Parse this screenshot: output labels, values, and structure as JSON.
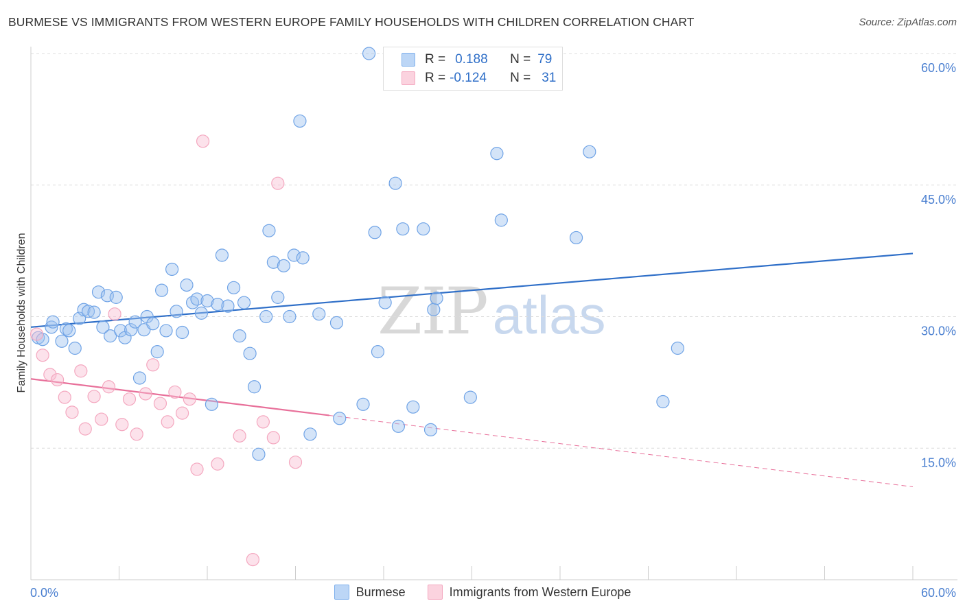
{
  "title": "BURMESE VS IMMIGRANTS FROM WESTERN EUROPE FAMILY HOUSEHOLDS WITH CHILDREN CORRELATION CHART",
  "source": "Source: ZipAtlas.com",
  "watermark": {
    "zip": "ZIP",
    "atlas": "atlas"
  },
  "legend": {
    "rows": [
      {
        "r_label": "R =",
        "r_value": "0.188",
        "n_label": "N =",
        "n_value": "79",
        "color": "#7fb0ec"
      },
      {
        "r_label": "R =",
        "r_value": "-0.124",
        "n_label": "N =",
        "n_value": "31",
        "color": "#f4a7bf"
      }
    ]
  },
  "bottom_legend": [
    {
      "label": "Burmese",
      "color": "#7fb0ec"
    },
    {
      "label": "Immigrants from Western Europe",
      "color": "#f4a7bf"
    }
  ],
  "chart_data": {
    "type": "scatter",
    "title": "BURMESE VS IMMIGRANTS FROM WESTERN EUROPE FAMILY HOUSEHOLDS WITH CHILDREN CORRELATION CHART",
    "xlabel": "",
    "ylabel": "Family Households with Children",
    "xlim": [
      0,
      60
    ],
    "ylim": [
      0,
      60
    ],
    "x_tick_labels": [
      "0.0%",
      "60.0%"
    ],
    "y_tick_labels": [
      "15.0%",
      "30.0%",
      "45.0%",
      "60.0%"
    ],
    "y_tick_values": [
      15,
      30,
      45,
      60
    ],
    "grid": true,
    "legend_position": "top-center",
    "series": [
      {
        "name": "Burmese",
        "color": "#6fa3e6",
        "line_color": "#2f6fc8",
        "trend": {
          "x0": 0,
          "y0": 28.8,
          "x1": 60,
          "y1": 37.2,
          "dashed_from": null
        },
        "points": [
          [
            0.5,
            27.6
          ],
          [
            0.8,
            27.4
          ],
          [
            1.4,
            28.8
          ],
          [
            1.5,
            29.4
          ],
          [
            2.1,
            27.2
          ],
          [
            2.4,
            28.6
          ],
          [
            2.6,
            28.4
          ],
          [
            3.0,
            26.4
          ],
          [
            3.3,
            29.8
          ],
          [
            3.6,
            30.8
          ],
          [
            3.9,
            30.6
          ],
          [
            4.3,
            30.5
          ],
          [
            4.6,
            32.8
          ],
          [
            4.9,
            28.8
          ],
          [
            5.2,
            32.4
          ],
          [
            5.4,
            27.8
          ],
          [
            5.8,
            32.2
          ],
          [
            6.1,
            28.4
          ],
          [
            6.4,
            27.6
          ],
          [
            6.8,
            28.5
          ],
          [
            7.1,
            29.4
          ],
          [
            7.4,
            23.0
          ],
          [
            7.7,
            28.5
          ],
          [
            7.9,
            30.0
          ],
          [
            8.3,
            29.2
          ],
          [
            8.6,
            26.0
          ],
          [
            8.9,
            33.0
          ],
          [
            9.2,
            28.4
          ],
          [
            9.6,
            35.4
          ],
          [
            9.9,
            30.6
          ],
          [
            10.3,
            28.2
          ],
          [
            10.6,
            33.6
          ],
          [
            11.0,
            31.6
          ],
          [
            11.3,
            32.0
          ],
          [
            11.6,
            30.4
          ],
          [
            12.0,
            31.8
          ],
          [
            12.3,
            20.0
          ],
          [
            12.7,
            31.4
          ],
          [
            13.0,
            37.0
          ],
          [
            13.4,
            31.2
          ],
          [
            13.8,
            33.3
          ],
          [
            14.2,
            27.8
          ],
          [
            14.5,
            31.6
          ],
          [
            14.9,
            25.8
          ],
          [
            15.2,
            22.0
          ],
          [
            15.5,
            14.3
          ],
          [
            16.0,
            30.0
          ],
          [
            16.2,
            39.8
          ],
          [
            16.5,
            36.2
          ],
          [
            16.8,
            32.2
          ],
          [
            17.2,
            35.8
          ],
          [
            17.6,
            30.0
          ],
          [
            17.9,
            37.0
          ],
          [
            18.3,
            52.3
          ],
          [
            18.5,
            36.7
          ],
          [
            19.0,
            16.6
          ],
          [
            19.6,
            30.3
          ],
          [
            20.8,
            29.3
          ],
          [
            21.0,
            18.4
          ],
          [
            22.6,
            20.0
          ],
          [
            23.0,
            60.0
          ],
          [
            23.4,
            39.6
          ],
          [
            23.6,
            26.0
          ],
          [
            24.1,
            31.6
          ],
          [
            24.8,
            45.2
          ],
          [
            25.0,
            17.5
          ],
          [
            25.3,
            40.0
          ],
          [
            26.0,
            19.7
          ],
          [
            26.7,
            40.0
          ],
          [
            27.2,
            17.1
          ],
          [
            27.4,
            30.8
          ],
          [
            27.6,
            32.1
          ],
          [
            29.9,
            20.8
          ],
          [
            31.7,
            48.6
          ],
          [
            32.0,
            41.0
          ],
          [
            37.1,
            39.0
          ],
          [
            38.0,
            48.8
          ],
          [
            43.0,
            20.3
          ],
          [
            44.0,
            26.4
          ]
        ]
      },
      {
        "name": "Immigrants from Western Europe",
        "color": "#f4a7bf",
        "line_color": "#e8709a",
        "trend": {
          "x0": 0,
          "y0": 22.9,
          "x1": 60,
          "y1": 10.6,
          "dashed_from": 20.3
        },
        "points": [
          [
            0.4,
            28.0
          ],
          [
            0.8,
            25.6
          ],
          [
            1.3,
            23.4
          ],
          [
            1.8,
            22.8
          ],
          [
            2.3,
            20.8
          ],
          [
            2.8,
            19.1
          ],
          [
            3.4,
            23.8
          ],
          [
            3.7,
            17.2
          ],
          [
            4.3,
            20.9
          ],
          [
            4.8,
            18.3
          ],
          [
            5.3,
            22.0
          ],
          [
            5.7,
            30.3
          ],
          [
            6.2,
            17.7
          ],
          [
            6.7,
            20.6
          ],
          [
            7.2,
            16.6
          ],
          [
            7.8,
            21.2
          ],
          [
            8.3,
            24.5
          ],
          [
            8.8,
            20.1
          ],
          [
            9.3,
            18.0
          ],
          [
            9.8,
            21.4
          ],
          [
            10.3,
            19.0
          ],
          [
            10.8,
            20.6
          ],
          [
            11.3,
            12.6
          ],
          [
            11.7,
            50.0
          ],
          [
            12.7,
            13.2
          ],
          [
            14.2,
            16.4
          ],
          [
            15.1,
            2.3
          ],
          [
            15.8,
            18.0
          ],
          [
            16.5,
            16.2
          ],
          [
            16.8,
            45.2
          ],
          [
            18.0,
            13.4
          ]
        ]
      }
    ]
  }
}
